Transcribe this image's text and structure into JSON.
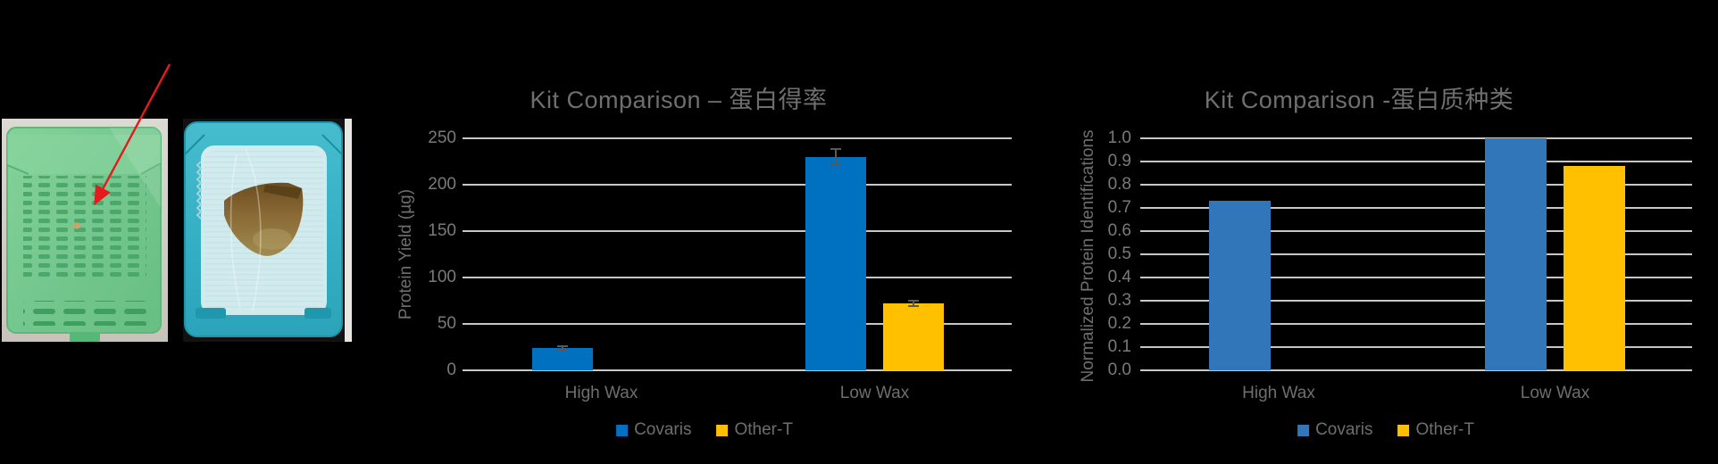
{
  "page": {
    "background": "#000000"
  },
  "figures": {
    "green_cassette_color": "#74c78e",
    "blue_cassette_color": "#3ab3c8",
    "paraffin_color": "#d9edef",
    "tissue_color": "#8a6a35",
    "arrow_color": "#e31b1c"
  },
  "chart_data": [
    {
      "type": "bar",
      "title": "Kit Comparison – 蛋白得率",
      "xlabel": "",
      "ylabel": "Protein Yield (µg)",
      "categories": [
        "High Wax",
        "Low Wax"
      ],
      "series": [
        {
          "name": "Covaris",
          "color": "#0070C0",
          "values": [
            24,
            230
          ],
          "errors": [
            2,
            8
          ]
        },
        {
          "name": "Other-T",
          "color": "#FFC000",
          "values": [
            0,
            72
          ],
          "errors": [
            0,
            3
          ]
        }
      ],
      "ylim": [
        0,
        250
      ],
      "yticks": [
        "0",
        "50",
        "100",
        "150",
        "200",
        "250"
      ],
      "grid": true,
      "legend_position": "bottom"
    },
    {
      "type": "bar",
      "title": "Kit Comparison -蛋白质种类",
      "xlabel": "",
      "ylabel": "Normalized Protein Identifications",
      "categories": [
        "High Wax",
        "Low Wax"
      ],
      "series": [
        {
          "name": "Covaris",
          "color": "#3076B8",
          "values": [
            0.73,
            1.0
          ],
          "errors": [
            0,
            0
          ]
        },
        {
          "name": "Other-T",
          "color": "#FFC000",
          "values": [
            0,
            0.88
          ],
          "errors": [
            0,
            0
          ]
        }
      ],
      "ylim": [
        0,
        1.0
      ],
      "yticks": [
        "0.0",
        "0.1",
        "0.2",
        "0.3",
        "0.4",
        "0.5",
        "0.6",
        "0.7",
        "0.8",
        "0.9",
        "1.0"
      ],
      "grid": true,
      "legend_position": "bottom"
    }
  ]
}
